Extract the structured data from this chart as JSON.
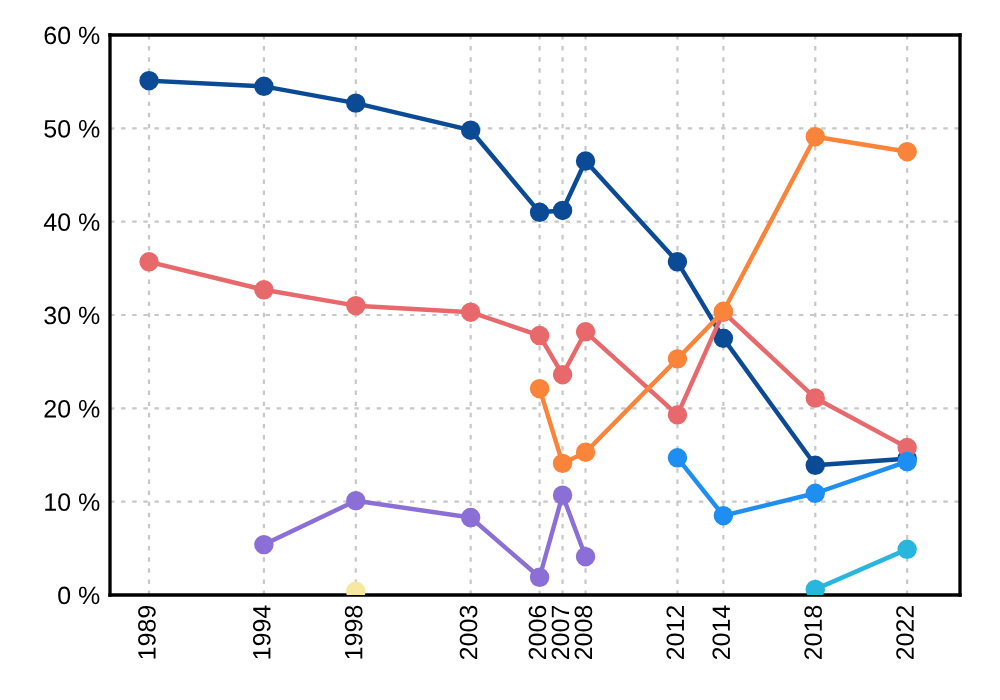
{
  "chart_data": {
    "type": "line",
    "marker": "circle",
    "grid": true,
    "xlim": [
      1987.3,
      2024.3
    ],
    "xticks": [
      1989,
      1994,
      1998,
      2003,
      2006,
      2007,
      2008,
      2012,
      2014,
      2018,
      2022
    ],
    "ylim": [
      0,
      60
    ],
    "yticks": [
      {
        "value": 0,
        "label": "0 %"
      },
      {
        "value": 10,
        "label": "10 %"
      },
      {
        "value": 20,
        "label": "20 %"
      },
      {
        "value": 30,
        "label": "30 %"
      },
      {
        "value": 40,
        "label": "40 %"
      },
      {
        "value": 50,
        "label": "50 %"
      },
      {
        "value": 60,
        "label": "60 %"
      }
    ],
    "series": [
      {
        "color": "#0b4a94",
        "x": [
          1989,
          1994,
          1998,
          2003,
          2006,
          2007,
          2008,
          2012,
          2014,
          2018,
          2022
        ],
        "values": [
          55.1,
          54.5,
          52.7,
          49.8,
          41.0,
          41.2,
          46.5,
          35.7,
          27.5,
          13.9,
          14.6
        ]
      },
      {
        "color": "#e8696b",
        "x": [
          1989,
          1994,
          1998,
          2003,
          2006,
          2007,
          2008,
          2012,
          2014,
          2018,
          2022
        ],
        "values": [
          35.7,
          32.7,
          31.0,
          30.3,
          27.8,
          23.6,
          28.2,
          19.3,
          30.3,
          21.1,
          15.8
        ]
      },
      {
        "color": "#f9843a",
        "x": [
          2006,
          2007,
          2008,
          2012,
          2014,
          2018,
          2022
        ],
        "values": [
          22.1,
          14.1,
          15.3,
          25.3,
          30.4,
          49.1,
          47.5
        ]
      },
      {
        "color": "#8b6fd6",
        "x": [
          1994,
          1998,
          2003,
          2006,
          2007,
          2008
        ],
        "values": [
          5.4,
          10.1,
          8.3,
          1.9,
          10.7,
          4.1
        ]
      },
      {
        "color": "#1e8ef0",
        "x": [
          2012,
          2014,
          2018,
          2022
        ],
        "values": [
          14.7,
          8.5,
          10.9,
          14.3
        ]
      },
      {
        "color": "#29b6dc",
        "x": [
          2018,
          2022
        ],
        "values": [
          0.6,
          4.9
        ]
      },
      {
        "color": "#f6e7a1",
        "x": [
          1998
        ],
        "values": [
          0.4
        ]
      }
    ]
  }
}
